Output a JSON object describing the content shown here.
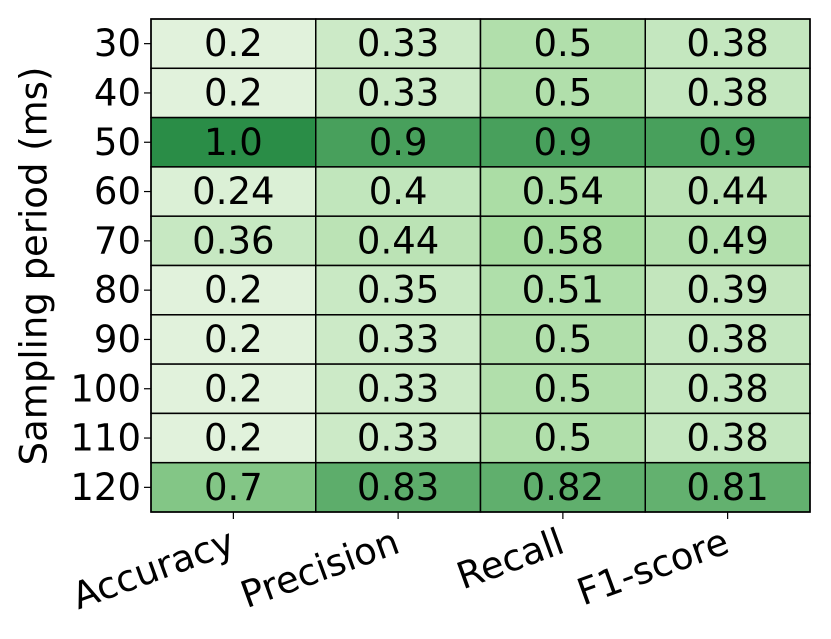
{
  "chart_data": {
    "type": "heatmap",
    "ylabel": "Sampling period (ms)",
    "x_categories": [
      "Accuracy",
      "Precision",
      "Recall",
      "F1-score"
    ],
    "y_categories": [
      "30",
      "40",
      "50",
      "60",
      "70",
      "80",
      "90",
      "100",
      "110",
      "120"
    ],
    "values": [
      [
        0.2,
        0.33,
        0.5,
        0.38
      ],
      [
        0.2,
        0.33,
        0.5,
        0.38
      ],
      [
        1.0,
        0.9,
        0.9,
        0.9
      ],
      [
        0.24,
        0.4,
        0.54,
        0.44
      ],
      [
        0.36,
        0.44,
        0.58,
        0.49
      ],
      [
        0.2,
        0.35,
        0.51,
        0.39
      ],
      [
        0.2,
        0.33,
        0.5,
        0.38
      ],
      [
        0.2,
        0.33,
        0.5,
        0.38
      ],
      [
        0.2,
        0.33,
        0.5,
        0.38
      ],
      [
        0.7,
        0.83,
        0.82,
        0.81
      ]
    ],
    "value_labels": [
      [
        "0.2",
        "0.33",
        "0.5",
        "0.38"
      ],
      [
        "0.2",
        "0.33",
        "0.5",
        "0.38"
      ],
      [
        "1.0",
        "0.9",
        "0.9",
        "0.9"
      ],
      [
        "0.24",
        "0.4",
        "0.54",
        "0.44"
      ],
      [
        "0.36",
        "0.44",
        "0.58",
        "0.49"
      ],
      [
        "0.2",
        "0.35",
        "0.51",
        "0.39"
      ],
      [
        "0.2",
        "0.33",
        "0.5",
        "0.38"
      ],
      [
        "0.2",
        "0.33",
        "0.5",
        "0.38"
      ],
      [
        "0.2",
        "0.33",
        "0.5",
        "0.38"
      ],
      [
        "0.7",
        "0.83",
        "0.82",
        "0.81"
      ]
    ],
    "colormap": [
      "#e1f2dc",
      "#a1d99b",
      "#2a8d47"
    ],
    "cell_edge_color": "#000000"
  }
}
